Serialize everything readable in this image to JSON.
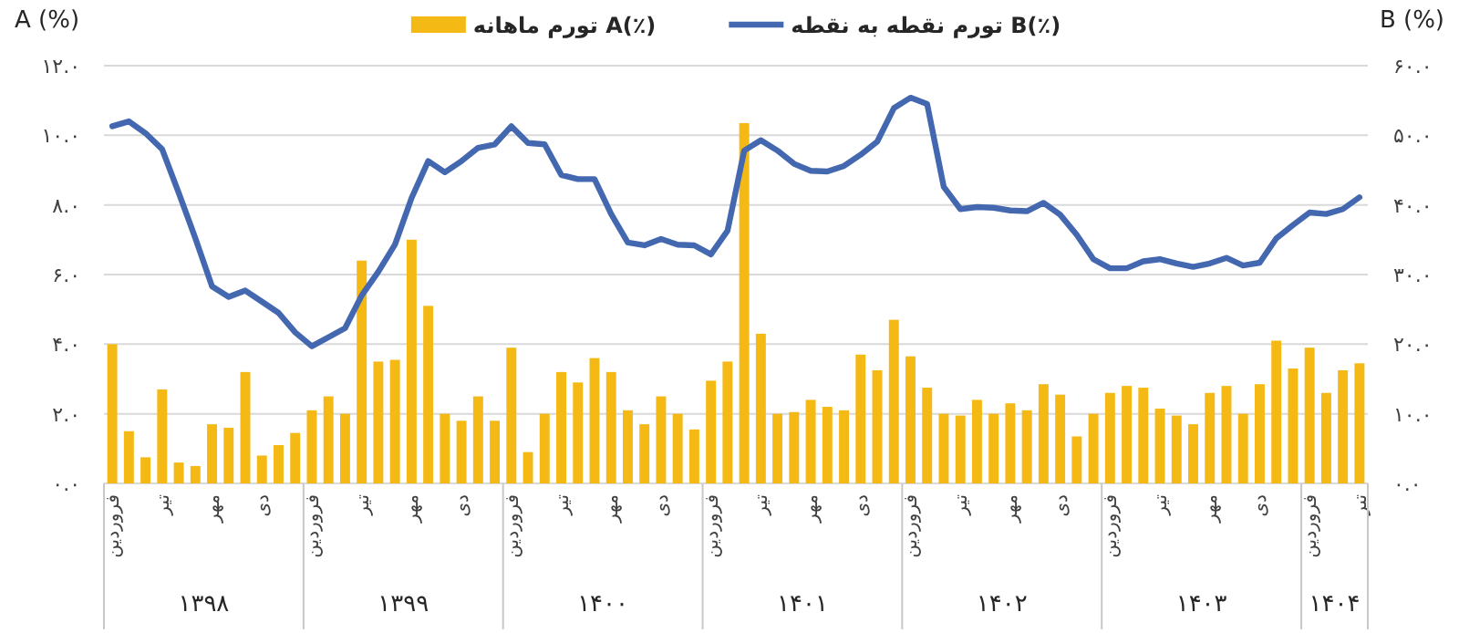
{
  "chart_data": {
    "type": "bar",
    "ylabel": "A (%)",
    "y2label": "B (%)",
    "categories": [
      "فروردین",
      null,
      null,
      "تیر",
      null,
      null,
      "مهر",
      null,
      null,
      "دی",
      null,
      null,
      "فروردین",
      null,
      null,
      "تیر",
      null,
      null,
      "مهر",
      null,
      null,
      "دی",
      null,
      null,
      "فروردین",
      null,
      null,
      "تیر",
      null,
      null,
      "مهر",
      null,
      null,
      "دی",
      null,
      null,
      "فروردین",
      null,
      null,
      "تیر",
      null,
      null,
      "مهر",
      null,
      null,
      "دی",
      null,
      null,
      "فروردین",
      null,
      null,
      "تیر",
      null,
      null,
      "مهر",
      null,
      null,
      "دی",
      null,
      null,
      "فروردین",
      null,
      null,
      "تیر",
      null,
      null,
      "مهر",
      null,
      null,
      "دی",
      null,
      null,
      "فروردین",
      null,
      null,
      "تیر"
    ],
    "series": [
      {
        "name": "تورم ماهانه A(٪)",
        "color": "#f4b914",
        "values": [
          4.0,
          1.5,
          0.75,
          2.7,
          0.6,
          0.5,
          1.7,
          1.6,
          3.2,
          0.8,
          1.1,
          1.45,
          2.1,
          2.5,
          2.0,
          6.4,
          3.5,
          3.55,
          7.0,
          5.1,
          2.0,
          1.8,
          2.5,
          1.8,
          3.9,
          0.9,
          2.0,
          3.2,
          2.9,
          3.6,
          3.2,
          2.1,
          1.7,
          2.5,
          2.0,
          1.55,
          2.95,
          3.5,
          10.35,
          4.3,
          2.0,
          2.05,
          2.4,
          2.2,
          2.1,
          3.7,
          3.25,
          4.7,
          3.65,
          2.75,
          2.0,
          1.95,
          2.4,
          2.0,
          2.3,
          2.1,
          2.85,
          2.55,
          1.35,
          2.0,
          2.6,
          2.8,
          2.75,
          2.15,
          1.95,
          1.7,
          2.6,
          2.8,
          2.0,
          2.85,
          4.1,
          3.3,
          3.9,
          2.6,
          3.25,
          3.45
        ]
      },
      {
        "name": "تورم نقطه به نقطه B(٪)",
        "type": "line",
        "axis": "y2",
        "color": "#4468b0",
        "values": [
          51.3,
          52.0,
          50.3,
          48.0,
          41.7,
          35.2,
          28.3,
          26.8,
          27.7,
          26.1,
          24.5,
          21.7,
          19.7,
          21.0,
          22.3,
          27.0,
          30.4,
          34.3,
          41.0,
          46.3,
          44.7,
          46.3,
          48.2,
          48.7,
          51.3,
          48.9,
          48.7,
          44.3,
          43.7,
          43.7,
          38.7,
          34.6,
          34.2,
          35.1,
          34.3,
          34.2,
          32.9,
          36.3,
          47.8,
          49.3,
          47.8,
          45.9,
          44.9,
          44.8,
          45.6,
          47.2,
          49.1,
          53.9,
          55.4,
          54.5,
          42.6,
          39.4,
          39.7,
          39.6,
          39.2,
          39.1,
          40.3,
          38.6,
          35.7,
          32.2,
          30.9,
          30.9,
          31.9,
          32.2,
          31.6,
          31.1,
          31.6,
          32.4,
          31.3,
          31.7,
          35.2,
          37.1,
          38.9,
          38.7,
          39.4,
          41.1
        ]
      }
    ],
    "ylim": [
      0,
      12
    ],
    "yticks": [
      {
        "value": 0,
        "label": "۰.۰"
      },
      {
        "value": 2,
        "label": "۲.۰"
      },
      {
        "value": 4,
        "label": "۴.۰"
      },
      {
        "value": 6,
        "label": "۶.۰"
      },
      {
        "value": 8,
        "label": "۸.۰"
      },
      {
        "value": 10,
        "label": "۱۰.۰"
      },
      {
        "value": 12,
        "label": "۱۲.۰"
      }
    ],
    "y2lim": [
      0,
      60
    ],
    "y2ticks": [
      {
        "value": 0,
        "label": "۰.۰"
      },
      {
        "value": 10,
        "label": "۱۰.۰"
      },
      {
        "value": 20,
        "label": "۲۰.۰"
      },
      {
        "value": 30,
        "label": "۳۰.۰"
      },
      {
        "value": 40,
        "label": "۴۰.۰"
      },
      {
        "value": 50,
        "label": "۵۰.۰"
      },
      {
        "value": 60,
        "label": "۶۰.۰"
      }
    ],
    "annotations": [
      "۱۳۹۸",
      "۱۳۹۹",
      "۱۴۰۰",
      "۱۴۰۱",
      "۱۴۰۲",
      "۱۴۰۳",
      "۱۴۰۴"
    ],
    "grid": "y",
    "legend": "top",
    "line_style": "solid",
    "marker": "none"
  }
}
